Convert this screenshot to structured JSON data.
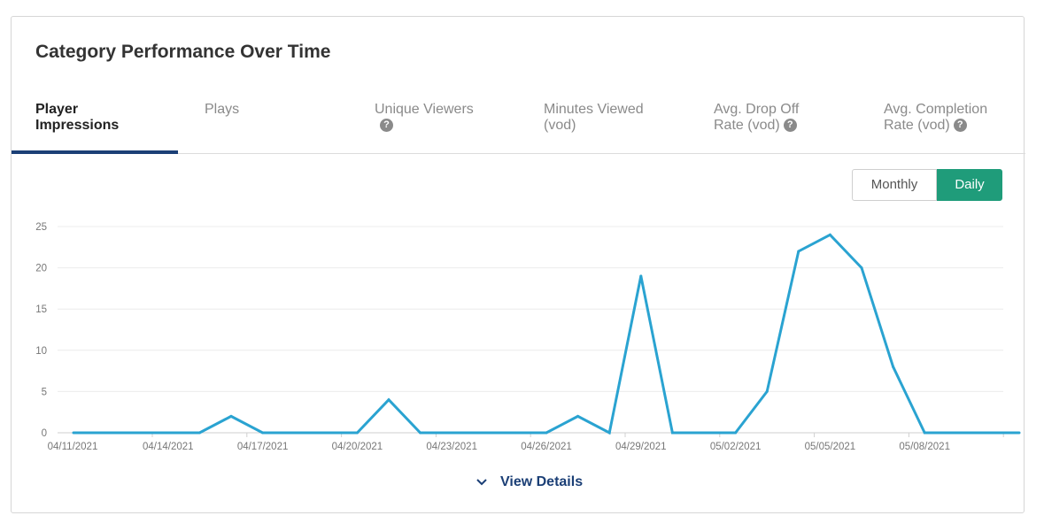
{
  "card": {
    "title": "Category Performance Over Time"
  },
  "tabs": [
    {
      "line1": "Player",
      "line2": "Impressions",
      "help": false,
      "active": true
    },
    {
      "line1": "Plays",
      "line2": "",
      "help": false,
      "active": false
    },
    {
      "line1": "Unique Viewers",
      "line2": "",
      "help": true,
      "active": false
    },
    {
      "line1": "Minutes Viewed",
      "line2": "(vod)",
      "help": false,
      "active": false
    },
    {
      "line1": "Avg. Drop Off",
      "line2": "Rate (vod)",
      "help": true,
      "active": false
    },
    {
      "line1": "Avg. Completion",
      "line2": "Rate (vod)",
      "help": true,
      "active": false
    }
  ],
  "help_glyph": "?",
  "toggle": {
    "monthly_label": "Monthly",
    "daily_label": "Daily",
    "selected": "Daily"
  },
  "view_details_label": "View Details",
  "colors": {
    "line": "#2aa3d1",
    "accent": "#1f9c7a",
    "tab_underline": "#1b3f76"
  },
  "chart_data": {
    "type": "line",
    "title": "",
    "xlabel": "",
    "ylabel": "",
    "ylim": [
      0,
      25
    ],
    "yticks": [
      0,
      5,
      10,
      15,
      20,
      25
    ],
    "grid": true,
    "x": [
      "04/11/2021",
      "04/12/2021",
      "04/13/2021",
      "04/14/2021",
      "04/15/2021",
      "04/16/2021",
      "04/17/2021",
      "04/18/2021",
      "04/19/2021",
      "04/20/2021",
      "04/21/2021",
      "04/22/2021",
      "04/23/2021",
      "04/24/2021",
      "04/25/2021",
      "04/26/2021",
      "04/27/2021",
      "04/28/2021",
      "04/29/2021",
      "04/30/2021",
      "05/01/2021",
      "05/02/2021",
      "05/03/2021",
      "05/04/2021",
      "05/05/2021",
      "05/06/2021",
      "05/07/2021",
      "05/08/2021",
      "05/09/2021",
      "05/10/2021",
      "05/11/2021"
    ],
    "xtick_labels": [
      "04/11/2021",
      "04/14/2021",
      "04/17/2021",
      "04/20/2021",
      "04/23/2021",
      "04/26/2021",
      "04/29/2021",
      "05/02/2021",
      "05/05/2021",
      "05/08/2021"
    ],
    "series": [
      {
        "values": [
          0,
          0,
          0,
          0,
          0,
          2,
          0,
          0,
          0,
          0,
          4,
          0,
          0,
          0,
          0,
          0,
          2,
          0,
          19,
          0,
          0,
          0,
          5,
          22,
          24,
          20,
          8,
          0,
          0,
          0,
          0
        ]
      }
    ]
  }
}
